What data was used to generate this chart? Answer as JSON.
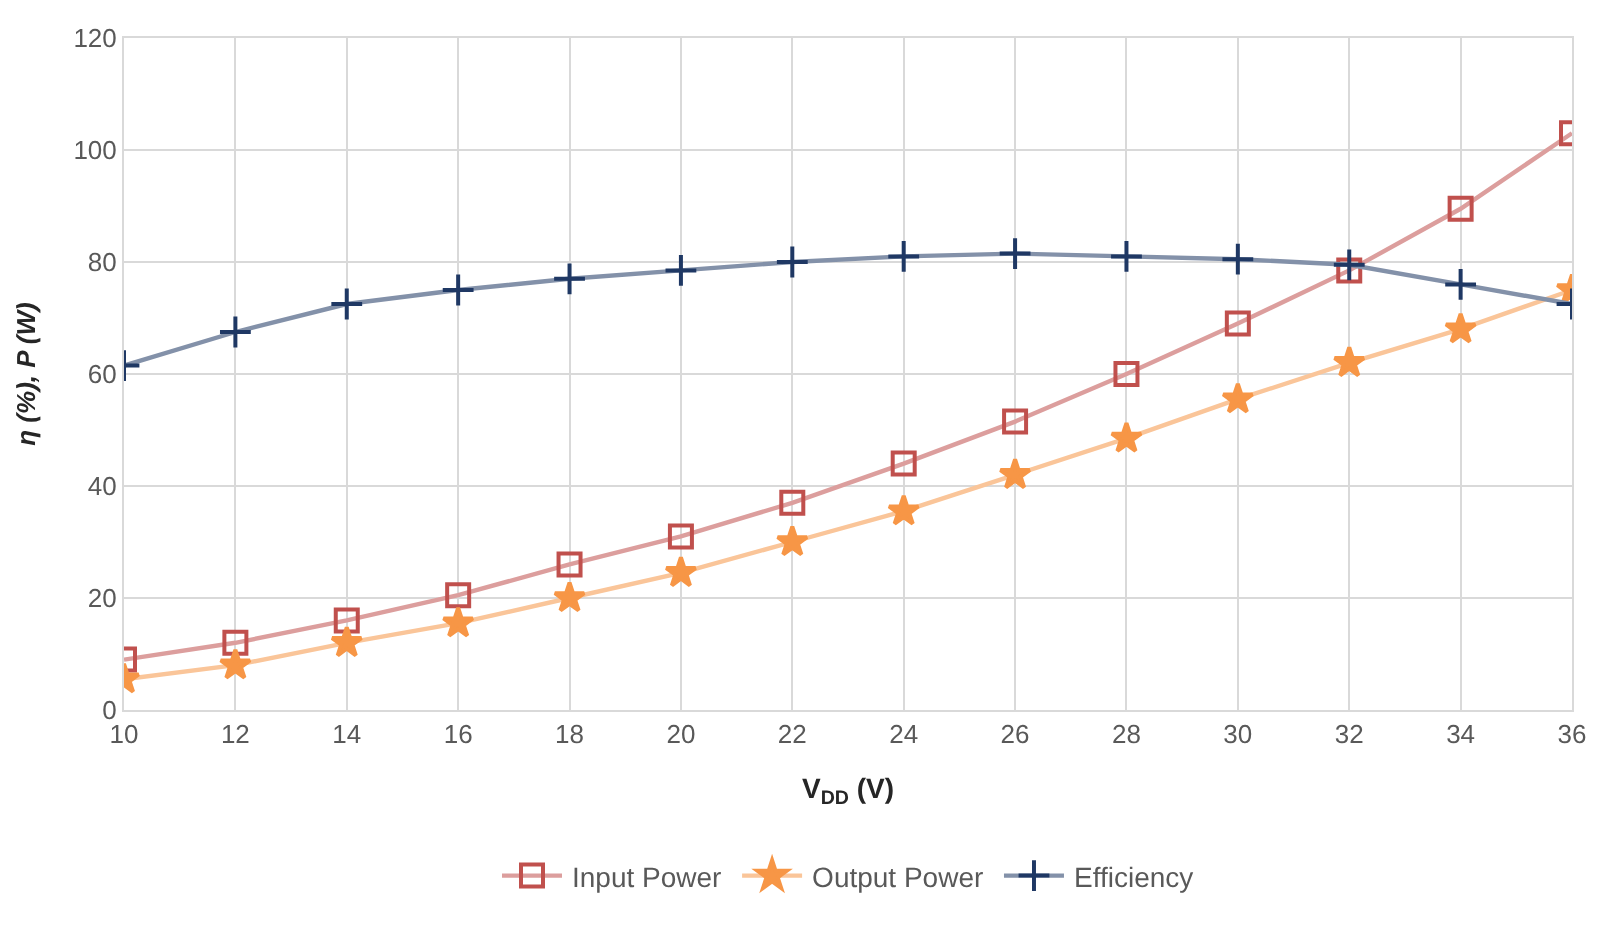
{
  "chart_data": {
    "type": "line",
    "xlabel": "V$_{DD}$ (V)",
    "ylabel": "η (%), P (W)",
    "categories": [
      "10",
      "12",
      "14",
      "16",
      "18",
      "20",
      "22",
      "24",
      "26",
      "28",
      "30",
      "32",
      "34",
      "36"
    ],
    "series": [
      {
        "name": "Input Power",
        "color": "#c0504d",
        "marker": "square",
        "values": [
          9,
          12,
          16,
          20.5,
          26,
          31,
          37,
          44,
          51.5,
          60,
          69,
          78.5,
          89.5,
          103
        ]
      },
      {
        "name": "Output Power",
        "color": "#f79646",
        "marker": "star",
        "values": [
          5.5,
          8,
          12,
          15.5,
          20,
          24.5,
          30,
          35.5,
          42,
          48.5,
          55.5,
          62,
          68,
          75
        ]
      },
      {
        "name": "Efficiency",
        "color": "#1f3864",
        "marker": "cross",
        "values": [
          61.5,
          67.5,
          72.5,
          75,
          77,
          78.5,
          80,
          81,
          81.5,
          81,
          80.5,
          79.5,
          76,
          72.5
        ]
      }
    ],
    "ylim": [
      0,
      120
    ],
    "yticks": [
      0,
      20,
      40,
      60,
      80,
      100,
      120
    ],
    "grid": true,
    "legend": "bottom"
  }
}
